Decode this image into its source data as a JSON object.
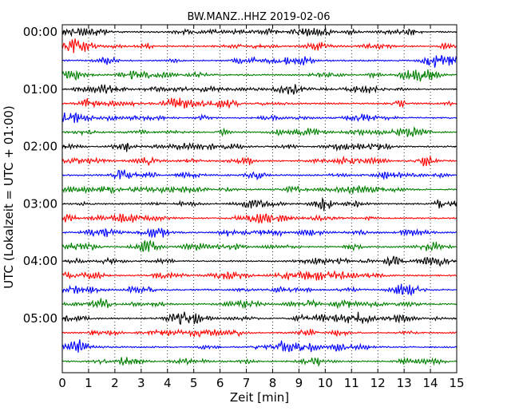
{
  "chart_data": {
    "type": "line",
    "title": "BW.MANZ..HHZ 2019-02-06",
    "xlabel": "Zeit  [min]",
    "ylabel": "UTC (Lokalzeit = UTC + 01:00)",
    "xlim": [
      0,
      15
    ],
    "x_ticks": [
      "0",
      "1",
      "2",
      "3",
      "4",
      "5",
      "6",
      "7",
      "8",
      "9",
      "10",
      "11",
      "12",
      "13",
      "14",
      "15"
    ],
    "y_ticks": [
      "00:00",
      "01:00",
      "02:00",
      "03:00",
      "04:00",
      "05:00"
    ],
    "y_tick_rows": [
      0,
      4,
      8,
      12,
      16,
      20
    ],
    "grid": "vertical dotted",
    "row_interval_minutes": 15,
    "row_count": 24,
    "series_colors": [
      "#000000",
      "#ff0000",
      "#0000ff",
      "#008000"
    ],
    "traces": [
      {
        "start": "00:00"
      },
      {
        "start": "00:15"
      },
      {
        "start": "00:30"
      },
      {
        "start": "00:45"
      },
      {
        "start": "01:00"
      },
      {
        "start": "01:15"
      },
      {
        "start": "01:30"
      },
      {
        "start": "01:45"
      },
      {
        "start": "02:00"
      },
      {
        "start": "02:15"
      },
      {
        "start": "02:30"
      },
      {
        "start": "02:45"
      },
      {
        "start": "03:00"
      },
      {
        "start": "03:15"
      },
      {
        "start": "03:30"
      },
      {
        "start": "03:45"
      },
      {
        "start": "04:00"
      },
      {
        "start": "04:15"
      },
      {
        "start": "04:30"
      },
      {
        "start": "04:45"
      },
      {
        "start": "05:00"
      },
      {
        "start": "05:15"
      },
      {
        "start": "05:30"
      },
      {
        "start": "05:45"
      }
    ]
  }
}
